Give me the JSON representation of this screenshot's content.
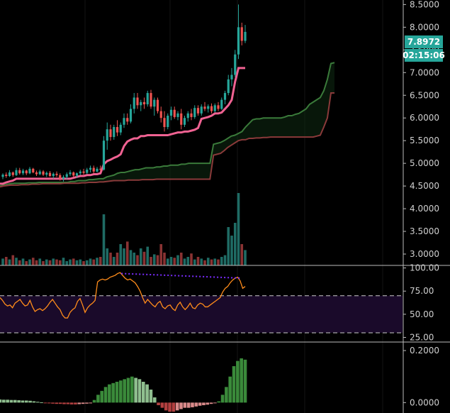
{
  "colors": {
    "background": "#000000",
    "up": "#26a69a",
    "down": "#ef5350",
    "pink": "#f06292",
    "green_band": "#3a7a3a",
    "red_band": "#8a3a3a",
    "rsi": "#ff8c1a",
    "rsi_zone": "#1a0a2a",
    "divergence": "#7b2cff",
    "badge": "#26a69a",
    "axis_text": "#d0d0d0"
  },
  "price_badge": {
    "price": "7.8972",
    "countdown": "02:15:06"
  },
  "chart_data": [
    {
      "type": "candlestick",
      "panel": "price",
      "ylim": [
        2.75,
        8.6
      ],
      "yticks": [
        "8.5000",
        "8.0000",
        "7.5000",
        "7.0000",
        "6.5000",
        "6.0000",
        "5.5000",
        "5.0000",
        "4.5000",
        "4.0000",
        "3.5000",
        "3.0000"
      ],
      "ytick_values": [
        8.5,
        8.0,
        7.5,
        7.0,
        6.5,
        6.0,
        5.5,
        5.0,
        4.5,
        4.0,
        3.5,
        3.0
      ],
      "candles": [
        [
          4.7,
          4.78,
          4.65,
          4.75
        ],
        [
          4.75,
          4.8,
          4.68,
          4.72
        ],
        [
          4.72,
          4.85,
          4.7,
          4.8
        ],
        [
          4.8,
          4.82,
          4.7,
          4.74
        ],
        [
          4.74,
          4.9,
          4.72,
          4.85
        ],
        [
          4.85,
          4.9,
          4.75,
          4.78
        ],
        [
          4.78,
          4.88,
          4.74,
          4.84
        ],
        [
          4.84,
          4.86,
          4.74,
          4.78
        ],
        [
          4.78,
          4.92,
          4.76,
          4.88
        ],
        [
          4.88,
          4.9,
          4.78,
          4.8
        ],
        [
          4.8,
          4.84,
          4.72,
          4.76
        ],
        [
          4.76,
          4.86,
          4.74,
          4.82
        ],
        [
          4.82,
          4.85,
          4.72,
          4.75
        ],
        [
          4.75,
          4.82,
          4.7,
          4.79
        ],
        [
          4.79,
          4.83,
          4.7,
          4.72
        ],
        [
          4.72,
          4.8,
          4.66,
          4.77
        ],
        [
          4.77,
          4.82,
          4.7,
          4.74
        ],
        [
          4.74,
          4.78,
          4.62,
          4.66
        ],
        [
          4.66,
          4.74,
          4.6,
          4.7
        ],
        [
          4.7,
          4.8,
          4.65,
          4.76
        ],
        [
          4.76,
          4.85,
          4.72,
          4.8
        ],
        [
          4.8,
          4.82,
          4.7,
          4.73
        ],
        [
          4.73,
          4.8,
          4.68,
          4.78
        ],
        [
          4.78,
          4.86,
          4.74,
          4.82
        ],
        [
          4.82,
          4.88,
          4.75,
          4.79
        ],
        [
          4.79,
          4.9,
          4.76,
          4.86
        ],
        [
          4.86,
          4.95,
          4.8,
          4.9
        ],
        [
          4.9,
          4.95,
          4.78,
          4.82
        ],
        [
          4.82,
          4.92,
          4.8,
          4.88
        ],
        [
          4.88,
          4.95,
          4.82,
          4.86
        ],
        [
          4.86,
          5.6,
          4.84,
          5.5
        ],
        [
          5.5,
          5.9,
          5.3,
          5.75
        ],
        [
          5.75,
          5.85,
          5.5,
          5.58
        ],
        [
          5.58,
          5.85,
          5.52,
          5.8
        ],
        [
          5.8,
          5.95,
          5.6,
          5.68
        ],
        [
          5.68,
          5.9,
          5.62,
          5.85
        ],
        [
          5.85,
          6.1,
          5.78,
          6.0
        ],
        [
          6.0,
          6.1,
          5.85,
          5.92
        ],
        [
          5.92,
          6.3,
          5.88,
          6.2
        ],
        [
          6.2,
          6.55,
          6.1,
          6.45
        ],
        [
          6.45,
          6.55,
          6.2,
          6.28
        ],
        [
          6.28,
          6.4,
          6.15,
          6.35
        ],
        [
          6.35,
          6.45,
          6.2,
          6.3
        ],
        [
          6.3,
          6.6,
          6.25,
          6.55
        ],
        [
          6.55,
          6.62,
          6.2,
          6.25
        ],
        [
          6.25,
          6.45,
          6.05,
          6.4
        ],
        [
          6.4,
          6.45,
          6.1,
          6.15
        ],
        [
          6.15,
          6.25,
          5.9,
          6.0
        ],
        [
          6.0,
          6.15,
          5.7,
          5.8
        ],
        [
          5.8,
          6.1,
          5.75,
          6.05
        ],
        [
          6.05,
          6.25,
          5.95,
          6.18
        ],
        [
          6.18,
          6.25,
          5.98,
          6.02
        ],
        [
          6.02,
          6.15,
          5.95,
          6.1
        ],
        [
          6.1,
          6.2,
          5.75,
          5.85
        ],
        [
          5.85,
          6.05,
          5.8,
          6.0
        ],
        [
          6.0,
          6.15,
          5.92,
          6.1
        ],
        [
          6.1,
          6.2,
          5.95,
          6.02
        ],
        [
          6.02,
          6.28,
          5.98,
          6.22
        ],
        [
          6.22,
          6.28,
          6.05,
          6.1
        ],
        [
          6.1,
          6.3,
          6.05,
          6.25
        ],
        [
          6.25,
          6.35,
          6.15,
          6.2
        ],
        [
          6.2,
          6.3,
          6.12,
          6.26
        ],
        [
          6.26,
          6.32,
          6.1,
          6.15
        ],
        [
          6.15,
          6.32,
          6.12,
          6.28
        ],
        [
          6.28,
          6.35,
          6.15,
          6.2
        ],
        [
          6.2,
          6.45,
          6.18,
          6.4
        ],
        [
          6.4,
          6.6,
          6.3,
          6.55
        ],
        [
          6.55,
          6.95,
          6.5,
          6.85
        ],
        [
          6.85,
          7.1,
          6.7,
          6.95
        ],
        [
          6.95,
          7.5,
          6.9,
          7.4
        ],
        [
          7.4,
          8.5,
          7.3,
          8.0
        ],
        [
          8.0,
          8.1,
          7.6,
          7.7
        ],
        [
          7.7,
          8.05,
          7.65,
          7.8972
        ]
      ],
      "trail_line": [
        4.55,
        4.58,
        4.6,
        4.62,
        4.66,
        4.66,
        4.66,
        4.66,
        4.66,
        4.66,
        4.66,
        4.66,
        4.66,
        4.66,
        4.66,
        4.66,
        4.66,
        4.66,
        4.66,
        4.66,
        4.66,
        4.68,
        4.7,
        4.72,
        4.72,
        4.74,
        4.74,
        4.76,
        4.76,
        4.78,
        4.98,
        5.05,
        5.08,
        5.12,
        5.15,
        5.2,
        5.38,
        5.48,
        5.52,
        5.55,
        5.55,
        5.6,
        5.6,
        5.62,
        5.62,
        5.62,
        5.62,
        5.62,
        5.62,
        5.62,
        5.64,
        5.66,
        5.68,
        5.68,
        5.7,
        5.7,
        5.72,
        5.74,
        5.78,
        5.98,
        6.0,
        6.02,
        6.05,
        6.1,
        6.1,
        6.12,
        6.2,
        6.28,
        6.4,
        6.8,
        7.1,
        7.1,
        7.1
      ],
      "band_upper": [
        4.5,
        4.52,
        4.54,
        4.55,
        4.56,
        4.56,
        4.56,
        4.56,
        4.57,
        4.57,
        4.57,
        4.58,
        4.58,
        4.58,
        4.58,
        4.58,
        4.58,
        4.58,
        4.58,
        4.58,
        4.6,
        4.6,
        4.62,
        4.62,
        4.62,
        4.64,
        4.64,
        4.65,
        4.66,
        4.66,
        4.7,
        4.72,
        4.74,
        4.78,
        4.8,
        4.8,
        4.82,
        4.84,
        4.86,
        4.86,
        4.88,
        4.9,
        4.9,
        4.9,
        4.92,
        4.92,
        4.94,
        4.94,
        4.96,
        4.96,
        4.96,
        4.98,
        4.98,
        5.0,
        5.0,
        5.0,
        5.0,
        5.0,
        5.0,
        5.0,
        5.42,
        5.44,
        5.46,
        5.5,
        5.55,
        5.6,
        5.62,
        5.66,
        5.7,
        5.8,
        5.88,
        5.96,
        5.98,
        5.98,
        6.0,
        6.0,
        6.0,
        6.0,
        6.0,
        6.0,
        6.02,
        6.05,
        6.05,
        6.08,
        6.1,
        6.15,
        6.2,
        6.3,
        6.35,
        6.4,
        6.45,
        6.6,
        6.85,
        7.2,
        7.22
      ],
      "band_lower": [
        4.48,
        4.5,
        4.51,
        4.52,
        4.52,
        4.52,
        4.53,
        4.53,
        4.53,
        4.54,
        4.54,
        4.54,
        4.55,
        4.55,
        4.55,
        4.55,
        4.55,
        4.55,
        4.56,
        4.56,
        4.56,
        4.56,
        4.56,
        4.57,
        4.57,
        4.58,
        4.58,
        4.58,
        4.59,
        4.59,
        4.6,
        4.61,
        4.62,
        4.62,
        4.62,
        4.62,
        4.63,
        4.63,
        4.63,
        4.63,
        4.64,
        4.64,
        4.64,
        4.64,
        4.65,
        4.65,
        4.65,
        4.65,
        4.65,
        4.65,
        4.65,
        4.65,
        4.65,
        4.65,
        4.65,
        4.65,
        4.65,
        4.65,
        4.65,
        4.65,
        5.18,
        5.2,
        5.22,
        5.28,
        5.35,
        5.4,
        5.45,
        5.5,
        5.52,
        5.52,
        5.55,
        5.55,
        5.56,
        5.56,
        5.57,
        5.57,
        5.58,
        5.58,
        5.58,
        5.58,
        5.58,
        5.58,
        5.58,
        5.58,
        5.58,
        5.58,
        5.58,
        5.58,
        5.58,
        5.6,
        5.62,
        5.8,
        6.0,
        6.55,
        6.55
      ],
      "volume": [
        0.8,
        1.0,
        0.7,
        1.2,
        0.9,
        0.6,
        0.8,
        0.5,
        0.7,
        0.9,
        0.6,
        0.8,
        0.5,
        0.7,
        0.6,
        0.8,
        0.7,
        0.6,
        0.9,
        0.5,
        0.7,
        0.8,
        0.6,
        0.7,
        0.5,
        0.6,
        0.8,
        0.7,
        0.9,
        1.0,
        6.0,
        2.0,
        1.5,
        1.0,
        1.5,
        2.5,
        2.0,
        2.8,
        1.8,
        1.5,
        1.2,
        2.0,
        1.6,
        2.2,
        1.0,
        1.3,
        1.2,
        2.5,
        1.5,
        0.8,
        1.0,
        0.9,
        1.2,
        1.5,
        0.8,
        1.0,
        1.4,
        0.7,
        1.0,
        0.8,
        0.6,
        0.9,
        0.7,
        0.8,
        0.7,
        1.0,
        1.2,
        4.5,
        3.5,
        5.0,
        8.5,
        2.5,
        1.8
      ]
    },
    {
      "type": "line",
      "panel": "rsi",
      "ylim": [
        20,
        102
      ],
      "yticks": [
        "100.00",
        "75.00",
        "50.00",
        "25.00"
      ],
      "ytick_values": [
        100,
        75,
        50,
        25
      ],
      "band": [
        30,
        70
      ],
      "values": [
        68,
        65,
        61,
        59,
        60,
        57,
        62,
        64,
        66,
        62,
        59,
        60,
        65,
        58,
        53,
        55,
        56,
        54,
        56,
        59,
        63,
        66,
        62,
        58,
        55,
        49,
        46,
        46,
        52,
        55,
        57,
        64,
        67,
        60,
        52,
        57,
        60,
        62,
        65,
        85,
        87,
        88,
        87,
        88,
        90,
        91,
        92,
        94,
        95,
        92,
        89,
        87,
        88,
        86,
        84,
        80,
        75,
        68,
        62,
        66,
        63,
        60,
        58,
        62,
        64,
        58,
        56,
        59,
        60,
        56,
        54,
        60,
        63,
        58,
        55,
        58,
        62,
        57,
        56,
        60,
        62,
        61,
        58,
        58,
        60,
        62,
        64,
        66,
        68,
        74,
        78,
        80,
        84,
        87,
        89,
        90,
        86,
        78,
        80
      ],
      "divergence": {
        "x": [
          40,
          96
        ],
        "y": [
          94,
          89
        ]
      }
    },
    {
      "type": "bar",
      "panel": "momentum",
      "ylim": [
        -0.04,
        0.23
      ],
      "yticks": [
        "0.2000",
        "0.0000"
      ],
      "ytick_values": [
        0.2,
        0.0
      ],
      "values": [
        0.012,
        0.011,
        0.011,
        0.01,
        0.01,
        0.009,
        0.008,
        0.008,
        0.007,
        0.005,
        0.003,
        0.001,
        -0.002,
        -0.003,
        -0.004,
        -0.005,
        -0.005,
        -0.006,
        -0.006,
        -0.007,
        -0.007,
        -0.006,
        -0.005,
        -0.004,
        -0.003,
        0.01,
        0.03,
        0.045,
        0.06,
        0.07,
        0.075,
        0.08,
        0.085,
        0.09,
        0.095,
        0.1,
        0.095,
        0.09,
        0.08,
        0.07,
        0.05,
        0.02,
        -0.01,
        -0.02,
        -0.03,
        -0.035,
        -0.035,
        -0.03,
        -0.025,
        -0.02,
        -0.02,
        -0.018,
        -0.015,
        -0.012,
        -0.01,
        -0.008,
        -0.005,
        0.0,
        0.005,
        0.03,
        0.06,
        0.1,
        0.14,
        0.16,
        0.17,
        0.165
      ],
      "colors": [
        "#8fbf8f",
        "#8fbf8f",
        "#8fbf8f",
        "#8fbf8f",
        "#8fbf8f",
        "#8fbf8f",
        "#8fbf8f",
        "#8fbf8f",
        "#8fbf8f",
        "#8fbf8f",
        "#8fbf8f",
        "#8fbf8f",
        "#b34040",
        "#b34040",
        "#b34040",
        "#b34040",
        "#b34040",
        "#b34040",
        "#b34040",
        "#b34040",
        "#b34040",
        "#d98a8a",
        "#d98a8a",
        "#d98a8a",
        "#d98a8a",
        "#3a8a3a",
        "#3a8a3a",
        "#3a8a3a",
        "#3a8a3a",
        "#3a8a3a",
        "#3a8a3a",
        "#3a8a3a",
        "#3a8a3a",
        "#3a8a3a",
        "#3a8a3a",
        "#3a8a3a",
        "#8fbf8f",
        "#8fbf8f",
        "#8fbf8f",
        "#8fbf8f",
        "#8fbf8f",
        "#8fbf8f",
        "#b34040",
        "#b34040",
        "#b34040",
        "#b34040",
        "#b34040",
        "#d98a8a",
        "#d98a8a",
        "#d98a8a",
        "#d98a8a",
        "#d98a8a",
        "#d98a8a",
        "#d98a8a",
        "#d98a8a",
        "#d98a8a",
        "#d98a8a",
        "#d98a8a",
        "#3a8a3a",
        "#3a8a3a",
        "#3a8a3a",
        "#3a8a3a",
        "#3a8a3a",
        "#3a8a3a",
        "#3a8a3a",
        "#3a8a3a"
      ]
    }
  ]
}
